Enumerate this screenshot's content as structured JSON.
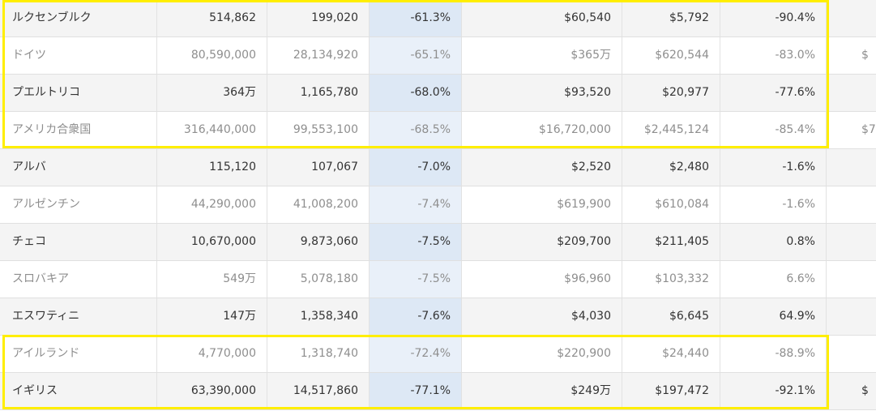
{
  "table": {
    "rows": [
      {
        "country": "ルクセンブルク",
        "c1": "514,862",
        "c2": "199,020",
        "c3": "-61.3%",
        "c4": "$60,540",
        "c5": "$5,792",
        "c6": "-90.4%",
        "c7": ""
      },
      {
        "country": "ドイツ",
        "c1": "80,590,000",
        "c2": "28,134,920",
        "c3": "-65.1%",
        "c4": "$365万",
        "c5": "$620,544",
        "c6": "-83.0%",
        "c7": "$"
      },
      {
        "country": "プエルトリコ",
        "c1": "364万",
        "c2": "1,165,780",
        "c3": "-68.0%",
        "c4": "$93,520",
        "c5": "$20,977",
        "c6": "-77.6%",
        "c7": ""
      },
      {
        "country": "アメリカ合衆国",
        "c1": "316,440,000",
        "c2": "99,553,100",
        "c3": "-68.5%",
        "c4": "$16,720,000",
        "c5": "$2,445,124",
        "c6": "-85.4%",
        "c7": "$7"
      },
      {
        "country": "アルバ",
        "c1": "115,120",
        "c2": "107,067",
        "c3": "-7.0%",
        "c4": "$2,520",
        "c5": "$2,480",
        "c6": "-1.6%",
        "c7": ""
      },
      {
        "country": "アルゼンチン",
        "c1": "44,290,000",
        "c2": "41,008,200",
        "c3": "-7.4%",
        "c4": "$619,900",
        "c5": "$610,084",
        "c6": "-1.6%",
        "c7": ""
      },
      {
        "country": "チェコ",
        "c1": "10,670,000",
        "c2": "9,873,060",
        "c3": "-7.5%",
        "c4": "$209,700",
        "c5": "$211,405",
        "c6": "0.8%",
        "c7": ""
      },
      {
        "country": "スロバキア",
        "c1": "549万",
        "c2": "5,078,180",
        "c3": "-7.5%",
        "c4": "$96,960",
        "c5": "$103,332",
        "c6": "6.6%",
        "c7": ""
      },
      {
        "country": "エスワティニ",
        "c1": "147万",
        "c2": "1,358,340",
        "c3": "-7.6%",
        "c4": "$4,030",
        "c5": "$6,645",
        "c6": "64.9%",
        "c7": ""
      },
      {
        "country": "アイルランド",
        "c1": "4,770,000",
        "c2": "1,318,740",
        "c3": "-72.4%",
        "c4": "$220,900",
        "c5": "$24,440",
        "c6": "-88.9%",
        "c7": ""
      },
      {
        "country": "イギリス",
        "c1": "63,390,000",
        "c2": "14,517,860",
        "c3": "-77.1%",
        "c4": "$249万",
        "c5": "$197,472",
        "c6": "-92.1%",
        "c7": "$"
      }
    ]
  },
  "highlight": {
    "color": "#ffee00"
  }
}
